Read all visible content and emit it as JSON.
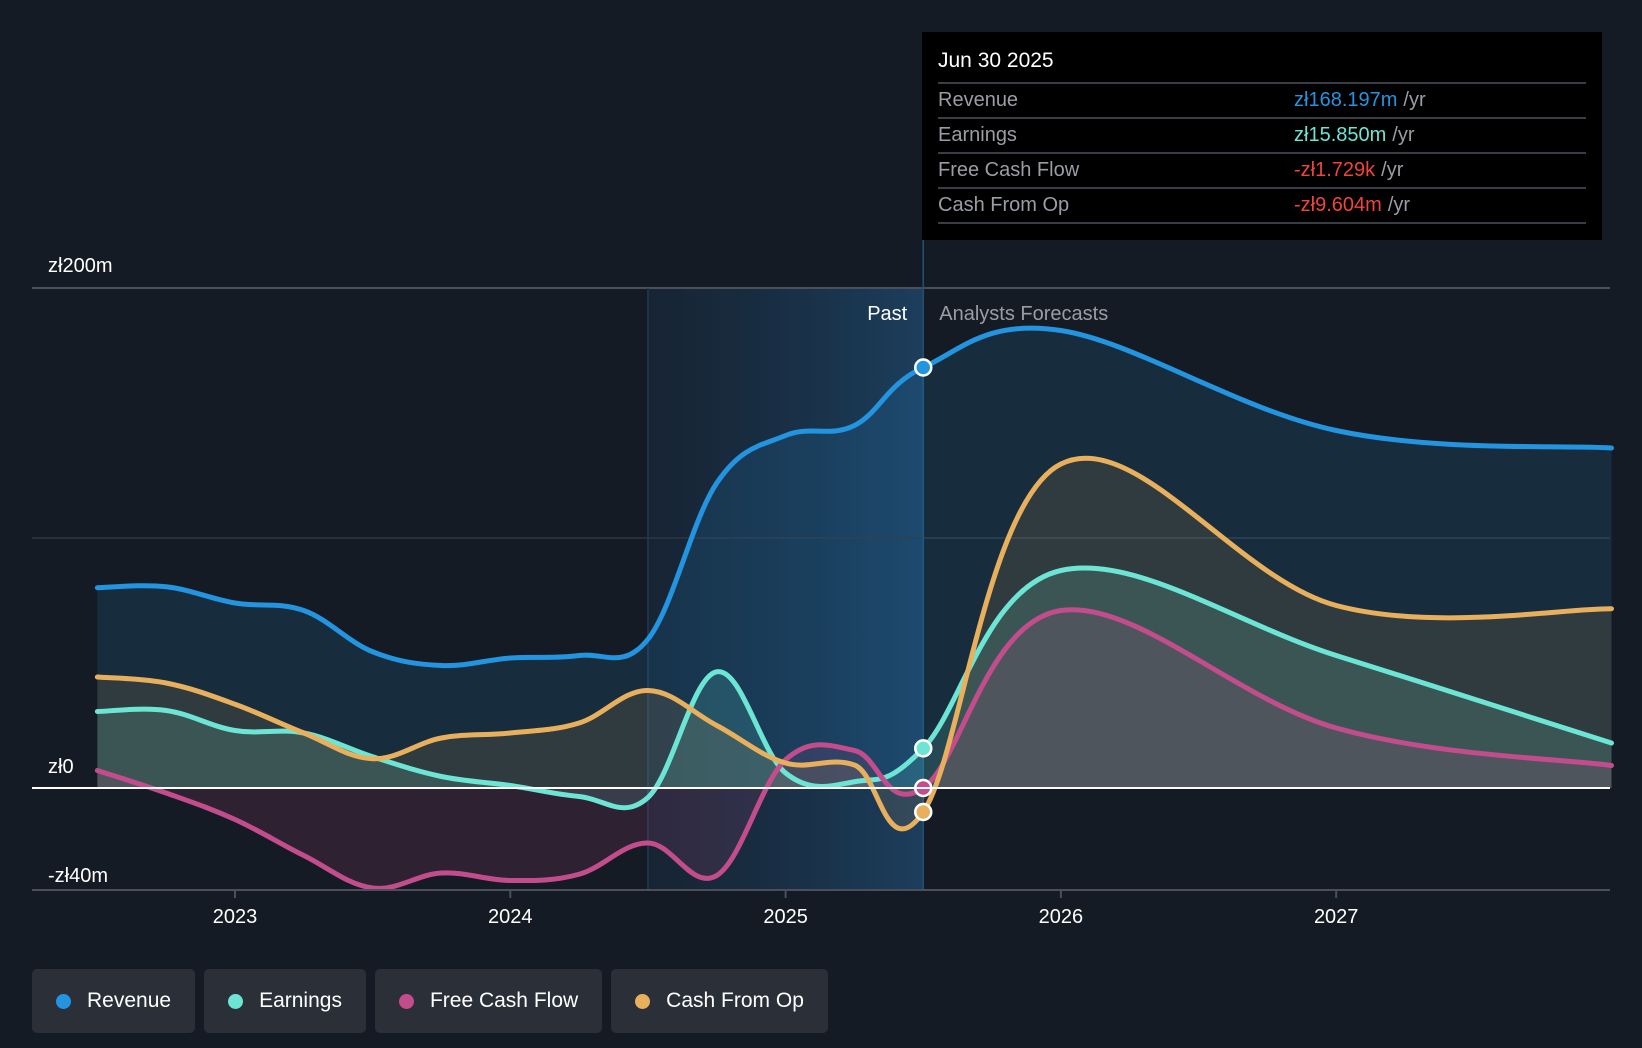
{
  "tooltip": {
    "date": "Jun 30 2025",
    "rows": [
      {
        "label": "Revenue",
        "value": "zł168.197m",
        "unit": "/yr",
        "color": "#2394df"
      },
      {
        "label": "Earnings",
        "value": "zł15.850m",
        "unit": "/yr",
        "color": "#6ce5d4"
      },
      {
        "label": "Free Cash Flow",
        "value": "-zł1.729k",
        "unit": "/yr",
        "color": "#f0433e"
      },
      {
        "label": "Cash From Op",
        "value": "-zł9.604m",
        "unit": "/yr",
        "color": "#f0433e"
      }
    ]
  },
  "legend": [
    {
      "label": "Revenue",
      "color": "#2394df"
    },
    {
      "label": "Earnings",
      "color": "#6ce5d4"
    },
    {
      "label": "Free Cash Flow",
      "color": "#c34d8c"
    },
    {
      "label": "Cash From Op",
      "color": "#e8b05c"
    }
  ],
  "chart_data": {
    "type": "line",
    "title": "",
    "xlabel": "",
    "ylabel": "",
    "x_ticks": [
      "2023",
      "2024",
      "2025",
      "2026",
      "2027"
    ],
    "y_ticks": [
      {
        "value": 200,
        "label": "zł200m"
      },
      {
        "value": 0,
        "label": "zł0"
      },
      {
        "value": -40,
        "label": "-zł40m"
      }
    ],
    "ylim": [
      -40,
      200
    ],
    "xlim": [
      2022.27,
      2028.0
    ],
    "grid": true,
    "legend_position": "bottom-left",
    "divider": {
      "x": 2025.5,
      "past_label": "Past",
      "forecast_label": "Analysts Forecasts"
    },
    "past_shade_start": 2024.5,
    "highlight_x": 2025.5,
    "x": [
      2022.5,
      2022.75,
      2023.0,
      2023.25,
      2023.5,
      2023.75,
      2024.0,
      2024.25,
      2024.5,
      2024.75,
      2025.0,
      2025.25,
      2025.5,
      2026.0,
      2027.0,
      2028.0
    ],
    "series": [
      {
        "name": "Revenue",
        "color": "#2394df",
        "values": [
          80.1,
          80.5,
          74,
          71,
          54.5,
          49,
          52,
          53,
          59.5,
          122,
          141,
          145,
          168.2,
          183,
          143,
          136
        ]
      },
      {
        "name": "Earnings",
        "color": "#6ce5d4",
        "values": [
          30.6,
          31,
          23,
          22,
          12.5,
          4.6,
          1,
          -3.4,
          -3.8,
          46.5,
          6,
          2.5,
          15.85,
          87,
          53,
          18
        ]
      },
      {
        "name": "Free Cash Flow",
        "color": "#c34d8c",
        "values": [
          7,
          -2,
          -12.6,
          -27,
          -40,
          -34,
          -37,
          -34.5,
          -22,
          -35,
          11.3,
          15,
          0,
          71,
          24,
          9
        ]
      },
      {
        "name": "Cash From Op",
        "color": "#e8b05c",
        "values": [
          44.4,
          42,
          33.5,
          22,
          11.7,
          20,
          22,
          26,
          39,
          25,
          10,
          9.2,
          -9.6,
          129.6,
          73,
          71.7
        ]
      }
    ]
  }
}
